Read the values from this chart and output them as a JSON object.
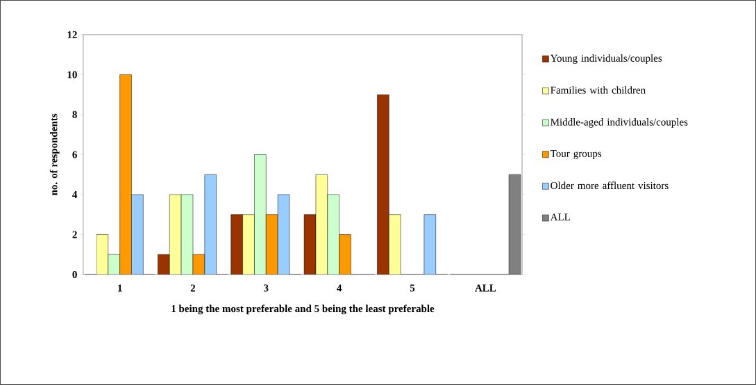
{
  "chart_data": {
    "type": "bar",
    "xlabel": "1 being the most preferable and 5 being the least preferable",
    "ylabel": "no. of respondents",
    "categories": [
      "1",
      "2",
      "3",
      "4",
      "5",
      "ALL"
    ],
    "series": [
      {
        "name": "Young individuals/couples",
        "color": "#993300",
        "values": [
          0,
          1,
          3,
          3,
          9,
          0
        ]
      },
      {
        "name": "Families with children",
        "color": "#ffff99",
        "values": [
          2,
          4,
          3,
          5,
          3,
          0
        ]
      },
      {
        "name": "Middle-aged individuals/couples",
        "color": "#ccffcc",
        "values": [
          1,
          4,
          6,
          4,
          0,
          0
        ]
      },
      {
        "name": "Tour groups",
        "color": "#ff9900",
        "values": [
          10,
          1,
          3,
          2,
          0,
          0
        ]
      },
      {
        "name": "Older more affluent visitors",
        "color": "#99ccff",
        "values": [
          4,
          5,
          4,
          0,
          3,
          0
        ]
      },
      {
        "name": "ALL",
        "color": "#808080",
        "values": [
          0,
          0,
          0,
          0,
          0,
          5
        ]
      }
    ],
    "ylim": [
      0,
      12
    ],
    "yticks": [
      0,
      2,
      4,
      6,
      8,
      10,
      12
    ],
    "grid": false,
    "legend": "right"
  }
}
